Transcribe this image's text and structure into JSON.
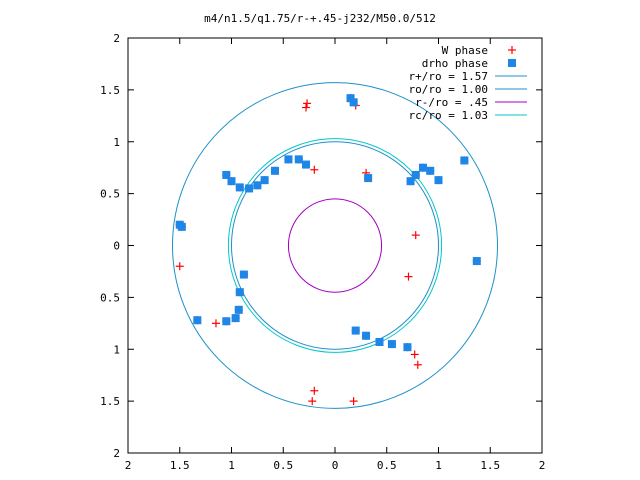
{
  "chart_data": {
    "type": "scatter",
    "title": "m4/n1.5/q1.75/r-+.45-j232/M50.0/512",
    "xlim": [
      -2,
      2
    ],
    "ylim": [
      -2,
      2
    ],
    "x_ticks": [
      -2,
      -1.5,
      -1,
      -0.5,
      0,
      0.5,
      1,
      1.5,
      2
    ],
    "y_ticks": [
      -2,
      -1.5,
      -1,
      -0.5,
      0,
      0.5,
      1,
      1.5,
      2
    ],
    "x_tick_labels": [
      "2",
      "1.5",
      "1",
      "0.5",
      "0",
      "0.5",
      "1",
      "1.5",
      "2"
    ],
    "y_tick_labels": [
      "2",
      "1.5",
      "1",
      "0.5",
      "0",
      "0.5",
      "1",
      "1.5",
      "2"
    ],
    "grid": false,
    "legend_position": "top-right",
    "colors": {
      "w_phase": "#ff0000",
      "drho_phase": "#1e86e6",
      "r_plus": "#1e90c8",
      "r_o": "#1e90c8",
      "r_minus": "#a000c0",
      "r_c": "#00c8c8"
    },
    "legend": [
      {
        "label": "W phase",
        "marker": "plus",
        "color": "#ff0000"
      },
      {
        "label": "drho phase",
        "marker": "square",
        "color": "#1e86e6"
      },
      {
        "label": "r+/ro = 1.57",
        "marker": "line",
        "color": "#1e90c8"
      },
      {
        "label": "ro/ro = 1.00",
        "marker": "line",
        "color": "#1e90c8"
      },
      {
        "label": "r-/ro =  .45",
        "marker": "line",
        "color": "#a000c0"
      },
      {
        "label": "rc/ro = 1.03",
        "marker": "line",
        "color": "#00c8c8"
      }
    ],
    "circles": [
      {
        "name": "r+/ro",
        "radius": 1.57,
        "color": "#1e90c8"
      },
      {
        "name": "ro/ro",
        "radius": 1.0,
        "color": "#1e90c8"
      },
      {
        "name": "r-/ro",
        "radius": 0.45,
        "color": "#a000c0"
      },
      {
        "name": "rc/ro",
        "radius": 1.03,
        "color": "#00c8c8"
      }
    ],
    "series": [
      {
        "name": "W phase",
        "marker": "plus",
        "points": [
          [
            -1.05,
            0.68
          ],
          [
            -1.0,
            0.62
          ],
          [
            -0.92,
            0.56
          ],
          [
            -0.83,
            0.55
          ],
          [
            -0.75,
            0.58
          ],
          [
            -0.68,
            0.63
          ],
          [
            -0.58,
            0.72
          ],
          [
            -0.45,
            0.83
          ],
          [
            -0.35,
            0.83
          ],
          [
            -0.28,
            0.78
          ],
          [
            -0.2,
            0.73
          ],
          [
            0.73,
            0.62
          ],
          [
            0.78,
            0.68
          ],
          [
            0.85,
            0.75
          ],
          [
            0.92,
            0.72
          ],
          [
            1.0,
            0.63
          ],
          [
            0.78,
            0.1
          ],
          [
            0.71,
            -0.3
          ],
          [
            0.2,
            -0.82
          ],
          [
            0.3,
            -0.87
          ],
          [
            0.43,
            -0.93
          ],
          [
            0.55,
            -0.95
          ],
          [
            0.7,
            -0.98
          ],
          [
            0.77,
            -1.05
          ],
          [
            0.8,
            -1.15
          ],
          [
            -0.88,
            -0.28
          ],
          [
            -0.92,
            -0.45
          ],
          [
            -0.93,
            -0.62
          ],
          [
            -0.96,
            -0.7
          ],
          [
            -1.05,
            -0.73
          ],
          [
            -1.15,
            -0.75
          ],
          [
            -1.5,
            0.2
          ],
          [
            -1.48,
            0.18
          ],
          [
            -1.5,
            -0.2
          ],
          [
            0.15,
            1.42
          ],
          [
            0.18,
            1.38
          ],
          [
            0.2,
            1.35
          ],
          [
            -1.33,
            -0.72
          ],
          [
            -0.28,
            1.33
          ],
          [
            -0.27,
            1.37
          ],
          [
            -0.22,
            -1.5
          ],
          [
            -0.2,
            -1.4
          ],
          [
            0.18,
            -1.5
          ],
          [
            1.25,
            0.82
          ],
          [
            1.37,
            -0.15
          ],
          [
            0.3,
            0.7
          ],
          [
            0.32,
            0.65
          ]
        ]
      },
      {
        "name": "drho phase",
        "marker": "square",
        "points": [
          [
            -1.05,
            0.68
          ],
          [
            -1.0,
            0.62
          ],
          [
            -0.92,
            0.56
          ],
          [
            -0.83,
            0.55
          ],
          [
            -0.75,
            0.58
          ],
          [
            -0.68,
            0.63
          ],
          [
            -0.58,
            0.72
          ],
          [
            -0.45,
            0.83
          ],
          [
            -0.35,
            0.83
          ],
          [
            -0.28,
            0.78
          ],
          [
            0.73,
            0.62
          ],
          [
            0.78,
            0.68
          ],
          [
            0.85,
            0.75
          ],
          [
            0.92,
            0.72
          ],
          [
            1.0,
            0.63
          ],
          [
            0.2,
            -0.82
          ],
          [
            0.3,
            -0.87
          ],
          [
            0.43,
            -0.93
          ],
          [
            0.55,
            -0.95
          ],
          [
            0.7,
            -0.98
          ],
          [
            -0.88,
            -0.28
          ],
          [
            -0.92,
            -0.45
          ],
          [
            -0.93,
            -0.62
          ],
          [
            -0.96,
            -0.7
          ],
          [
            -1.05,
            -0.73
          ],
          [
            -1.5,
            0.2
          ],
          [
            -1.48,
            0.18
          ],
          [
            0.15,
            1.42
          ],
          [
            0.18,
            1.38
          ],
          [
            1.25,
            0.82
          ],
          [
            1.37,
            -0.15
          ],
          [
            0.32,
            0.65
          ],
          [
            -1.33,
            -0.72
          ]
        ]
      }
    ]
  }
}
